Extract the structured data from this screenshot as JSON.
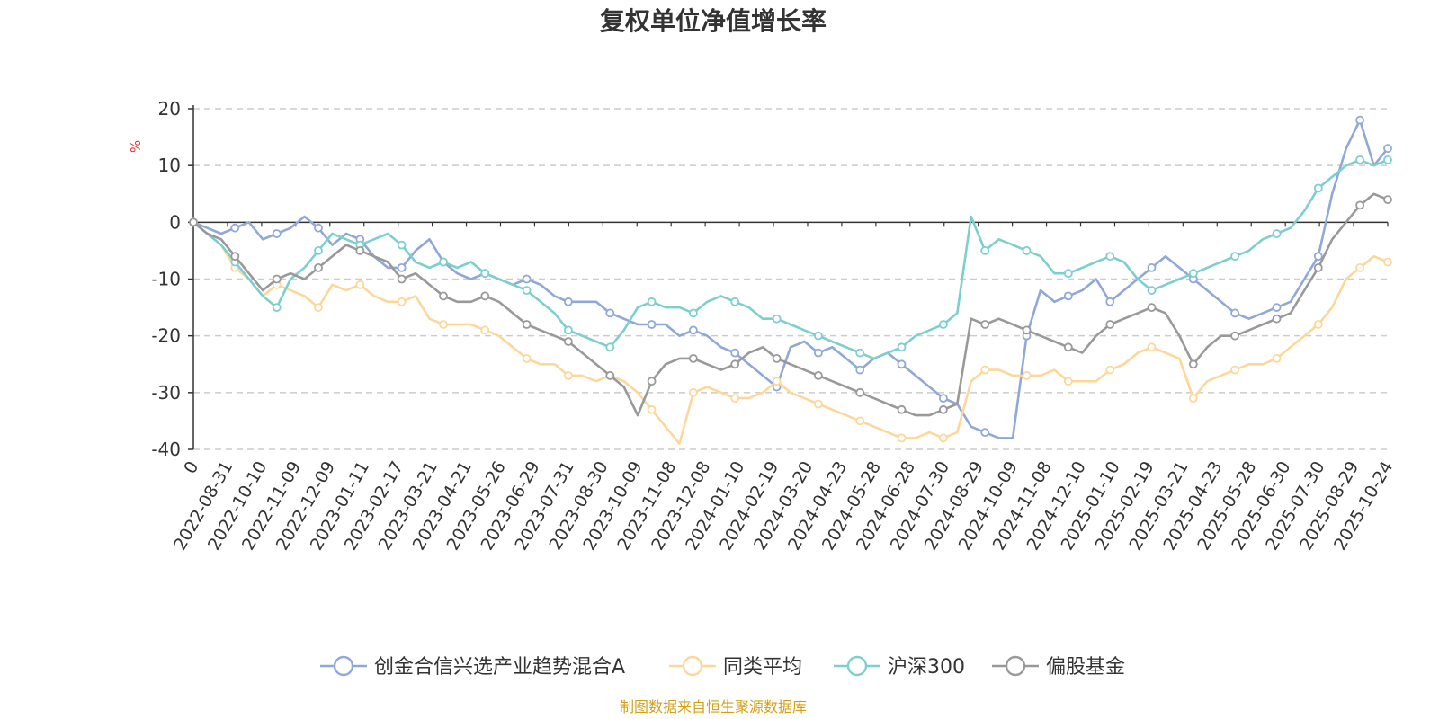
{
  "chart_data": {
    "type": "line",
    "title": "复权单位净值增长率",
    "ylabel": "%",
    "ylim": [
      -40,
      20
    ],
    "yticks": [
      -40,
      -30,
      -20,
      -10,
      0,
      10,
      20
    ],
    "grid": true,
    "legend_position": "bottom",
    "x_tick_labels": [
      "0",
      "2022-08-31",
      "2022-10-10",
      "2022-11-09",
      "2022-12-09",
      "2023-01-11",
      "2023-02-17",
      "2023-03-21",
      "2023-04-21",
      "2023-05-26",
      "2023-06-29",
      "2023-07-31",
      "2023-08-30",
      "2023-10-09",
      "2023-11-08",
      "2023-12-08",
      "2024-01-10",
      "2024-02-19",
      "2024-03-20",
      "2024-04-23",
      "2024-05-28",
      "2024-06-28",
      "2024-07-30",
      "2024-08-29",
      "2024-10-09",
      "2024-11-08",
      "2024-12-10",
      "2025-01-10",
      "2025-02-19",
      "2025-03-21",
      "2025-04-23",
      "2025-05-28",
      "2025-06-30",
      "2025-07-30",
      "2025-08-29",
      "2025-10-24"
    ],
    "series": [
      {
        "name": "创金合信兴选产业趋势混合A",
        "color": "#8fa8d8",
        "values": [
          0,
          -1,
          -2,
          -1,
          0,
          -3,
          -2,
          -1,
          1,
          -1,
          -4,
          -2,
          -3,
          -6,
          -8,
          -8,
          -5,
          -3,
          -7,
          -9,
          -10,
          -9,
          -10,
          -11,
          -10,
          -11,
          -13,
          -14,
          -14,
          -14,
          -16,
          -17,
          -18,
          -18,
          -18,
          -20,
          -19,
          -20,
          -22,
          -23,
          -25,
          -27,
          -29,
          -22,
          -21,
          -23,
          -22,
          -24,
          -26,
          -24,
          -23,
          -25,
          -27,
          -29,
          -31,
          -32,
          -36,
          -37,
          -38,
          -38,
          -20,
          -12,
          -14,
          -13,
          -12,
          -10,
          -14,
          -12,
          -10,
          -8,
          -6,
          -8,
          -10,
          -12,
          -14,
          -16,
          -17,
          -16,
          -15,
          -14,
          -10,
          -6,
          5,
          13,
          18,
          10,
          13
        ]
      },
      {
        "name": "同类平均",
        "color": "#fdd79a",
        "values": [
          0,
          -2,
          -4,
          -8,
          -10,
          -13,
          -11,
          -12,
          -13,
          -15,
          -11,
          -12,
          -11,
          -13,
          -14,
          -14,
          -13,
          -17,
          -18,
          -18,
          -18,
          -19,
          -20,
          -22,
          -24,
          -25,
          -25,
          -27,
          -27,
          -28,
          -27,
          -28,
          -30,
          -33,
          -36,
          -39,
          -30,
          -29,
          -30,
          -31,
          -31,
          -30,
          -28,
          -30,
          -31,
          -32,
          -33,
          -34,
          -35,
          -36,
          -37,
          -38,
          -38,
          -37,
          -38,
          -37,
          -28,
          -26,
          -26,
          -27,
          -27,
          -27,
          -26,
          -28,
          -28,
          -28,
          -26,
          -25,
          -23,
          -22,
          -23,
          -24,
          -31,
          -28,
          -27,
          -26,
          -25,
          -25,
          -24,
          -22,
          -20,
          -18,
          -15,
          -10,
          -8,
          -6,
          -7
        ]
      },
      {
        "name": "沪深300",
        "color": "#7dcfcf",
        "values": [
          0,
          -2,
          -4,
          -7,
          -10,
          -13,
          -15,
          -10,
          -8,
          -5,
          -2,
          -3,
          -4,
          -3,
          -2,
          -4,
          -7,
          -8,
          -7,
          -8,
          -7,
          -9,
          -10,
          -11,
          -12,
          -14,
          -16,
          -19,
          -20,
          -21,
          -22,
          -19,
          -15,
          -14,
          -15,
          -15,
          -16,
          -14,
          -13,
          -14,
          -15,
          -17,
          -17,
          -18,
          -19,
          -20,
          -21,
          -22,
          -23,
          -24,
          -23,
          -22,
          -20,
          -19,
          -18,
          -16,
          1,
          -5,
          -3,
          -4,
          -5,
          -6,
          -9,
          -9,
          -8,
          -7,
          -6,
          -7,
          -10,
          -12,
          -11,
          -10,
          -9,
          -8,
          -7,
          -6,
          -5,
          -3,
          -2,
          -1,
          2,
          6,
          8,
          10,
          11,
          10,
          11
        ]
      },
      {
        "name": "偏股基金",
        "color": "#999999",
        "values": [
          0,
          -2,
          -3,
          -6,
          -9,
          -12,
          -10,
          -9,
          -10,
          -8,
          -6,
          -4,
          -5,
          -6,
          -7,
          -10,
          -9,
          -11,
          -13,
          -14,
          -14,
          -13,
          -14,
          -16,
          -18,
          -19,
          -20,
          -21,
          -23,
          -25,
          -27,
          -29,
          -34,
          -28,
          -25,
          -24,
          -24,
          -25,
          -26,
          -25,
          -23,
          -22,
          -24,
          -25,
          -26,
          -27,
          -28,
          -29,
          -30,
          -31,
          -32,
          -33,
          -34,
          -34,
          -33,
          -32,
          -17,
          -18,
          -17,
          -18,
          -19,
          -20,
          -21,
          -22,
          -23,
          -20,
          -18,
          -17,
          -16,
          -15,
          -16,
          -20,
          -25,
          -22,
          -20,
          -20,
          -19,
          -18,
          -17,
          -16,
          -12,
          -8,
          -3,
          0,
          3,
          5,
          4
        ]
      }
    ]
  },
  "source": "制图数据来自恒生聚源数据库"
}
